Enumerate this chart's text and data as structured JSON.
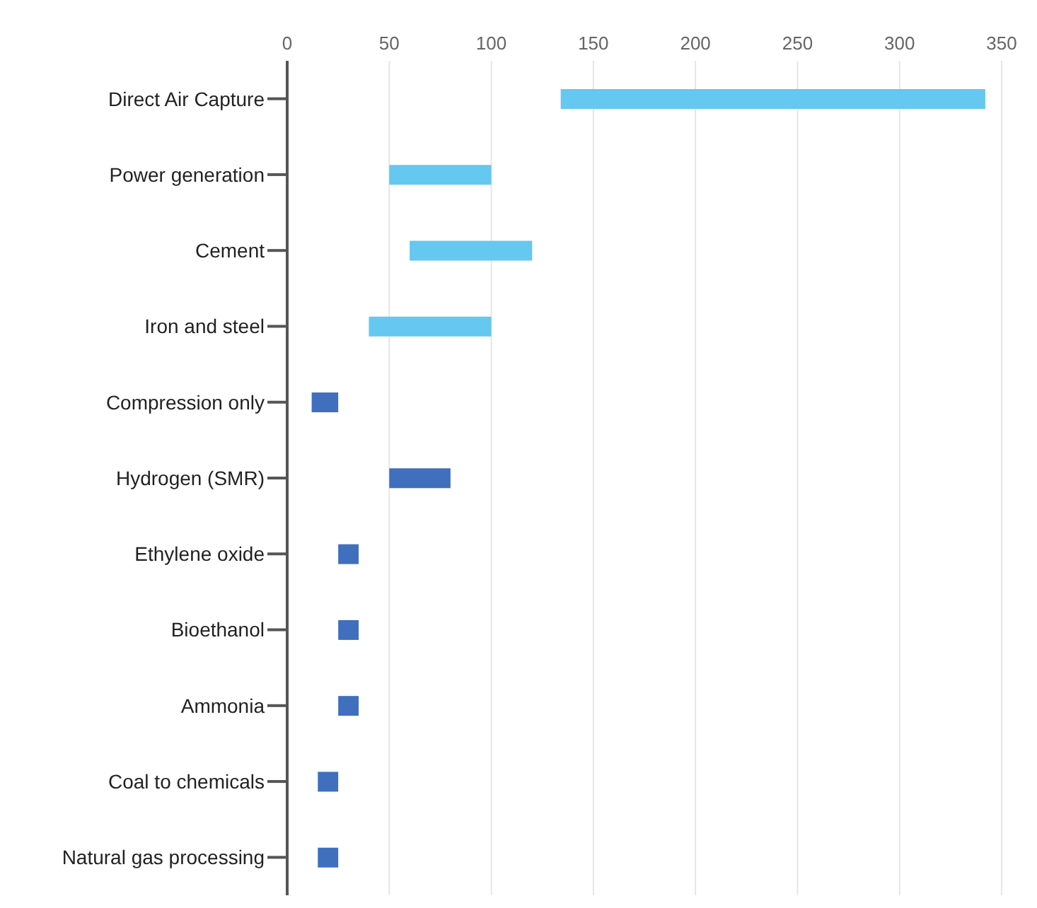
{
  "chart_data": {
    "type": "bar",
    "orientation": "horizontal",
    "categories": [
      "Direct Air Capture",
      "Power generation",
      "Cement",
      "Iron and steel",
      "Compression only",
      "Hydrogen (SMR)",
      "Ethylene oxide",
      "Bioethanol",
      "Ammonia",
      "Coal to chemicals",
      "Natural gas processing"
    ],
    "base": [
      134,
      50,
      60,
      40,
      12,
      50,
      25,
      25,
      25,
      15,
      15
    ],
    "values": [
      208,
      50,
      60,
      60,
      13,
      30,
      10,
      10,
      10,
      10,
      10
    ],
    "colors": [
      "#64c8f0",
      "#64c8f0",
      "#64c8f0",
      "#64c8f0",
      "#3f6fbd",
      "#3f6fbd",
      "#3f6fbd",
      "#3f6fbd",
      "#3f6fbd",
      "#3f6fbd",
      "#3f6fbd"
    ],
    "xlim": [
      0,
      350
    ],
    "xticks": [
      0,
      50,
      100,
      150,
      200,
      250,
      300,
      350
    ],
    "grid": "x"
  }
}
